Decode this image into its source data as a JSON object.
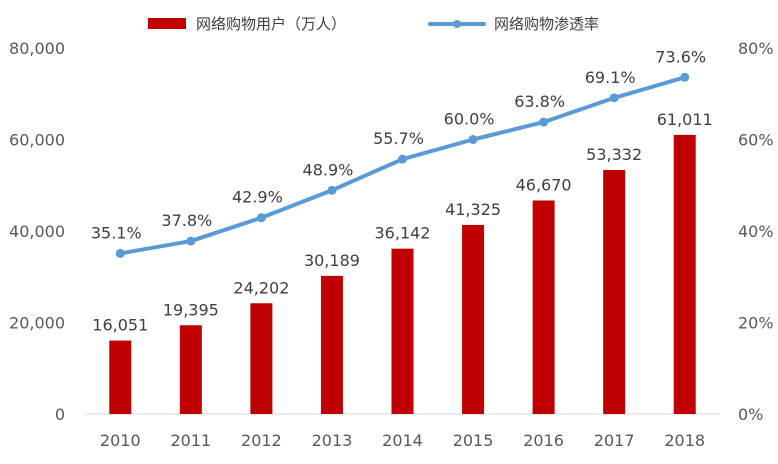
{
  "colors": {
    "bar": "#c00000",
    "line": "#5b9bd5",
    "axis": "#d9d9d9",
    "text": "#595959"
  },
  "chart_data": {
    "type": "bar",
    "categories": [
      "2010",
      "2011",
      "2012",
      "2013",
      "2014",
      "2015",
      "2016",
      "2017",
      "2018"
    ],
    "series": [
      {
        "name": "网络购物用户（万人）",
        "type": "bar",
        "axis": "left",
        "values": [
          16051,
          19395,
          24202,
          30189,
          36142,
          41325,
          46670,
          53332,
          61011
        ],
        "labels": [
          "16,051",
          "19,395",
          "24,202",
          "30,189",
          "36,142",
          "41,325",
          "46,670",
          "53,332",
          "61,011"
        ]
      },
      {
        "name": "网络购物渗透率",
        "type": "line",
        "axis": "right",
        "values": [
          35.1,
          37.8,
          42.9,
          48.9,
          55.7,
          60.0,
          63.8,
          69.1,
          73.6
        ],
        "labels": [
          "35.1%",
          "37.8%",
          "42.9%",
          "48.9%",
          "55.7%",
          "60.0%",
          "63.8%",
          "69.1%",
          "73.6%"
        ]
      }
    ],
    "y_left": {
      "range": [
        0,
        80000
      ],
      "ticks": [
        0,
        20000,
        40000,
        60000,
        80000
      ],
      "tick_labels": [
        "0",
        "20,000",
        "40,000",
        "60,000",
        "80,000"
      ]
    },
    "y_right": {
      "range": [
        0,
        80
      ],
      "ticks": [
        0,
        20,
        40,
        60,
        80
      ],
      "tick_labels": [
        "0%",
        "20%",
        "40%",
        "60%",
        "80%"
      ]
    },
    "grid": false,
    "legend_position": "top"
  }
}
